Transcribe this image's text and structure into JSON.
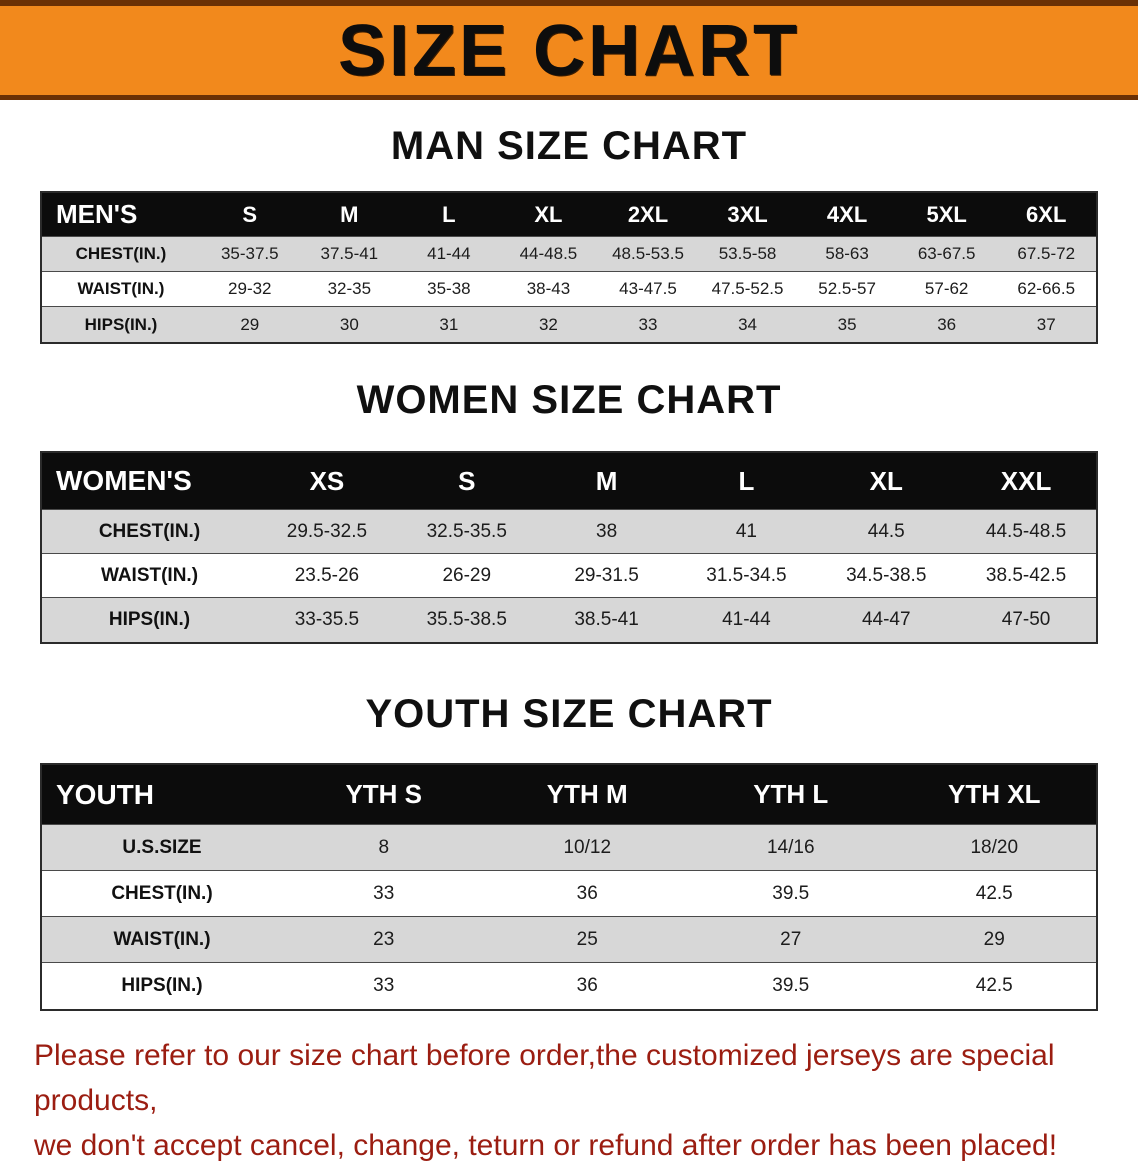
{
  "banner": {
    "title": "SIZE CHART"
  },
  "colors": {
    "banner_bg": "#f2891c",
    "banner_border": "#6b3105",
    "table_header_bg": "#0c0c0c",
    "row_alt_bg": "#d7d7d7",
    "footer_text": "#9b1d11"
  },
  "men": {
    "heading": "MAN SIZE CHART",
    "table": {
      "header": [
        "MEN'S",
        "S",
        "M",
        "L",
        "XL",
        "2XL",
        "3XL",
        "4XL",
        "5XL",
        "6XL"
      ],
      "rows": [
        {
          "label": "CHEST(IN.)",
          "values": [
            "35-37.5",
            "37.5-41",
            "41-44",
            "44-48.5",
            "48.5-53.5",
            "53.5-58",
            "58-63",
            "63-67.5",
            "67.5-72"
          ]
        },
        {
          "label": "WAIST(IN.)",
          "values": [
            "29-32",
            "32-35",
            "35-38",
            "38-43",
            "43-47.5",
            "47.5-52.5",
            "52.5-57",
            "57-62",
            "62-66.5"
          ]
        },
        {
          "label": "HIPS(IN.)",
          "values": [
            "29",
            "30",
            "31",
            "32",
            "33",
            "34",
            "35",
            "36",
            "37"
          ]
        }
      ]
    }
  },
  "women": {
    "heading": "WOMEN SIZE CHART",
    "table": {
      "header": [
        "WOMEN'S",
        "XS",
        "S",
        "M",
        "L",
        "XL",
        "XXL"
      ],
      "rows": [
        {
          "label": "CHEST(IN.)",
          "values": [
            "29.5-32.5",
            "32.5-35.5",
            "38",
            "41",
            "44.5",
            "44.5-48.5"
          ]
        },
        {
          "label": "WAIST(IN.)",
          "values": [
            "23.5-26",
            "26-29",
            "29-31.5",
            "31.5-34.5",
            "34.5-38.5",
            "38.5-42.5"
          ]
        },
        {
          "label": "HIPS(IN.)",
          "values": [
            "33-35.5",
            "35.5-38.5",
            "38.5-41",
            "41-44",
            "44-47",
            "47-50"
          ]
        }
      ]
    }
  },
  "youth": {
    "heading": "YOUTH SIZE CHART",
    "table": {
      "header": [
        "YOUTH",
        "YTH S",
        "YTH M",
        "YTH L",
        "YTH XL"
      ],
      "rows": [
        {
          "label": "U.S.SIZE",
          "values": [
            "8",
            "10/12",
            "14/16",
            "18/20"
          ]
        },
        {
          "label": "CHEST(IN.)",
          "values": [
            "33",
            "36",
            "39.5",
            "42.5"
          ]
        },
        {
          "label": "WAIST(IN.)",
          "values": [
            "23",
            "25",
            "27",
            "29"
          ]
        },
        {
          "label": "HIPS(IN.)",
          "values": [
            "33",
            "36",
            "39.5",
            "42.5"
          ]
        }
      ]
    }
  },
  "footer": {
    "line1": "Please refer to our size chart before order,the customized jerseys are special products,",
    "line2": "we don't accept cancel, change, teturn or refund after order has been placed!"
  }
}
